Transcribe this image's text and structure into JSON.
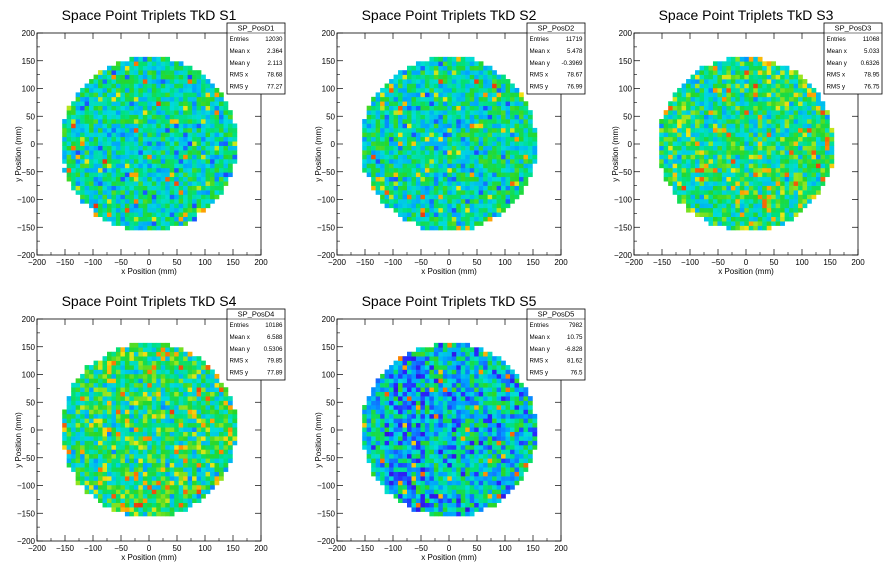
{
  "chart_data": [
    {
      "type": "heatmap",
      "title": "Space Point Triplets TkD S1",
      "xlabel": "x Position (mm)",
      "ylabel": "y Position (mm)",
      "xlim": [
        -200,
        200
      ],
      "ylim": [
        -200,
        200
      ],
      "xticks": [
        "−200",
        "−150",
        "−100",
        "−50",
        "0",
        "50",
        "100",
        "150",
        "200"
      ],
      "yticks": [
        "200",
        "150",
        "100",
        "50",
        "0",
        "−50",
        "−100",
        "−150",
        "−200"
      ],
      "stats": {
        "name": "SP_PosD1",
        "rows": [
          {
            "label": "Entries",
            "value": "12030"
          },
          {
            "label": "Mean x",
            "value": "2.364"
          },
          {
            "label": "Mean y",
            "value": "2.113"
          },
          {
            "label": "RMS x",
            "value": "78.68"
          },
          {
            "label": "RMS y",
            "value": "77.27"
          }
        ]
      },
      "footprint_radius": 155,
      "bin_size": 8,
      "palette": "rainbow",
      "texture": "uniform"
    },
    {
      "type": "heatmap",
      "title": "Space Point Triplets TkD S2",
      "xlabel": "x Position (mm)",
      "ylabel": "y Position (mm)",
      "xlim": [
        -200,
        200
      ],
      "ylim": [
        -200,
        200
      ],
      "xticks": [
        "−200",
        "−150",
        "−100",
        "−50",
        "0",
        "50",
        "100",
        "150",
        "200"
      ],
      "yticks": [
        "200",
        "150",
        "100",
        "50",
        "0",
        "−50",
        "−100",
        "−150",
        "−200"
      ],
      "stats": {
        "name": "SP_PosD2",
        "rows": [
          {
            "label": "Entries",
            "value": "11719"
          },
          {
            "label": "Mean x",
            "value": "5.478"
          },
          {
            "label": "Mean y",
            "value": "-0.3969"
          },
          {
            "label": "RMS x",
            "value": "78.67"
          },
          {
            "label": "RMS y",
            "value": "76.99"
          }
        ]
      },
      "footprint_radius": 155,
      "bin_size": 8,
      "palette": "rainbow",
      "texture": "uniform"
    },
    {
      "type": "heatmap",
      "title": "Space Point Triplets TkD S3",
      "xlabel": "x Position (mm)",
      "ylabel": "y Position (mm)",
      "xlim": [
        -200,
        200
      ],
      "ylim": [
        -200,
        200
      ],
      "xticks": [
        "−200",
        "−150",
        "−100",
        "−50",
        "0",
        "50",
        "100",
        "150",
        "200"
      ],
      "yticks": [
        "200",
        "150",
        "100",
        "50",
        "0",
        "−50",
        "−100",
        "−150",
        "−200"
      ],
      "stats": {
        "name": "SP_PosD3",
        "rows": [
          {
            "label": "Entries",
            "value": "11068"
          },
          {
            "label": "Mean x",
            "value": "5.033"
          },
          {
            "label": "Mean y",
            "value": "0.6326"
          },
          {
            "label": "RMS x",
            "value": "78.95"
          },
          {
            "label": "RMS y",
            "value": "76.75"
          }
        ]
      },
      "footprint_radius": 155,
      "bin_size": 8,
      "palette": "rainbow",
      "texture": "warm"
    },
    {
      "type": "heatmap",
      "title": "Space Point Triplets TkD S4",
      "xlabel": "x Position (mm)",
      "ylabel": "y Position (mm)",
      "xlim": [
        -200,
        200
      ],
      "ylim": [
        -200,
        200
      ],
      "xticks": [
        "−200",
        "−150",
        "−100",
        "−50",
        "0",
        "50",
        "100",
        "150",
        "200"
      ],
      "yticks": [
        "200",
        "150",
        "100",
        "50",
        "0",
        "−50",
        "−100",
        "−150",
        "−200"
      ],
      "stats": {
        "name": "SP_PosD4",
        "rows": [
          {
            "label": "Entries",
            "value": "10186"
          },
          {
            "label": "Mean x",
            "value": "6.588"
          },
          {
            "label": "Mean y",
            "value": "0.5306"
          },
          {
            "label": "RMS x",
            "value": "79.85"
          },
          {
            "label": "RMS y",
            "value": "77.89"
          }
        ]
      },
      "footprint_radius": 155,
      "bin_size": 8,
      "palette": "rainbow",
      "texture": "warm"
    },
    {
      "type": "heatmap",
      "title": "Space Point Triplets TkD S5",
      "xlabel": "x Position (mm)",
      "ylabel": "y Position (mm)",
      "xlim": [
        -200,
        200
      ],
      "ylim": [
        -200,
        200
      ],
      "xticks": [
        "−200",
        "−150",
        "−100",
        "−50",
        "0",
        "50",
        "100",
        "150",
        "200"
      ],
      "yticks": [
        "200",
        "150",
        "100",
        "50",
        "0",
        "−50",
        "−100",
        "−150",
        "−200"
      ],
      "stats": {
        "name": "SP_PosD5",
        "rows": [
          {
            "label": "Entries",
            "value": "7982"
          },
          {
            "label": "Mean x",
            "value": "10.75"
          },
          {
            "label": "Mean y",
            "value": "-6.828"
          },
          {
            "label": "RMS x",
            "value": "81.62"
          },
          {
            "label": "RMS y",
            "value": "76.5"
          }
        ]
      },
      "footprint_radius": 155,
      "bin_size": 8,
      "palette": "rainbow",
      "texture": "sparse-left"
    }
  ]
}
